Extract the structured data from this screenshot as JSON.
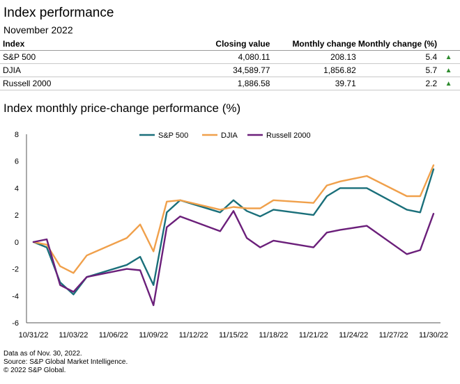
{
  "header": {
    "title": "Index performance",
    "subtitle": "November 2022"
  },
  "table": {
    "columns": [
      "Index",
      "Closing value",
      "Monthly change",
      "Monthly change (%)"
    ],
    "rows": [
      {
        "index": "S&P 500",
        "closing": "4,080.11",
        "change": "208.13",
        "pct": "5.4",
        "arrow": "▲"
      },
      {
        "index": "DJIA",
        "closing": "34,589.77",
        "change": "1,856.82",
        "pct": "5.7",
        "arrow": "▲"
      },
      {
        "index": "Russell 2000",
        "closing": "1,886.58",
        "change": "39.71",
        "pct": "2.2",
        "arrow": "▲"
      }
    ],
    "arrow_color": "#2e8b2e"
  },
  "chart_data": {
    "type": "line",
    "title": "Index monthly price-change performance (%)",
    "xlabel": "",
    "ylabel": "",
    "ylim": [
      -6,
      8
    ],
    "yticks": [
      -6,
      -4,
      -2,
      0,
      2,
      4,
      6,
      8
    ],
    "x": [
      "10/31/22",
      "11/01/22",
      "11/02/22",
      "11/03/22",
      "11/04/22",
      "11/07/22",
      "11/08/22",
      "11/09/22",
      "11/10/22",
      "11/11/22",
      "11/14/22",
      "11/15/22",
      "11/16/22",
      "11/17/22",
      "11/18/22",
      "11/21/22",
      "11/22/22",
      "11/23/22",
      "11/25/22",
      "11/28/22",
      "11/29/22",
      "11/30/22"
    ],
    "x_tick_labels": [
      "10/31/22",
      "11/03/22",
      "11/06/22",
      "11/09/22",
      "11/12/22",
      "11/15/22",
      "11/18/22",
      "11/21/22",
      "11/24/22",
      "11/27/22",
      "11/30/22"
    ],
    "series": [
      {
        "name": "S&P 500",
        "color": "#1a6f7a",
        "values": [
          0,
          -0.4,
          -3.0,
          -3.9,
          -2.6,
          -1.7,
          -1.1,
          -3.2,
          2.2,
          3.1,
          2.2,
          3.1,
          2.3,
          1.9,
          2.4,
          2.0,
          3.4,
          4.0,
          4.0,
          2.4,
          2.2,
          5.4
        ]
      },
      {
        "name": "DJIA",
        "color": "#f0a04b",
        "values": [
          0,
          -0.2,
          -1.8,
          -2.3,
          -1.0,
          0.3,
          1.3,
          -0.7,
          3.0,
          3.1,
          2.4,
          2.6,
          2.5,
          2.5,
          3.1,
          2.9,
          4.2,
          4.5,
          4.9,
          3.4,
          3.4,
          5.7
        ]
      },
      {
        "name": "Russell 2000",
        "color": "#6b1f7a",
        "values": [
          0,
          0.2,
          -3.2,
          -3.7,
          -2.6,
          -2.0,
          -2.1,
          -4.7,
          1.1,
          1.9,
          0.8,
          2.3,
          0.3,
          -0.4,
          0.1,
          -0.4,
          0.7,
          0.9,
          1.2,
          -0.9,
          -0.6,
          2.1
        ]
      }
    ],
    "grid": false,
    "legend_position": "top-center"
  },
  "notes": {
    "line1": "Data as of Nov. 30, 2022.",
    "line2": "Source: S&P Global Market Intelligence.",
    "line3": "© 2022 S&P Global."
  }
}
